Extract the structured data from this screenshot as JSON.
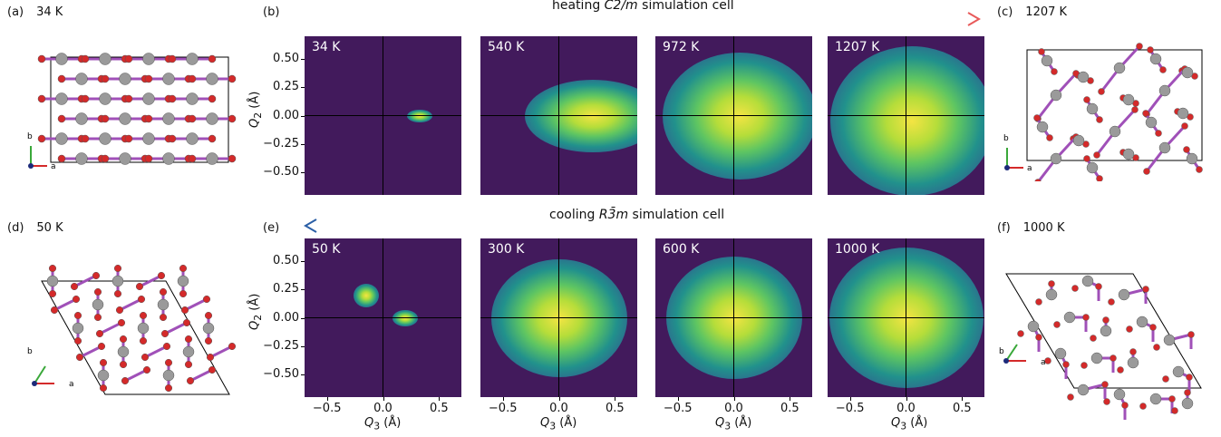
{
  "panels": {
    "a": {
      "label": "(a)",
      "temp": "34 K"
    },
    "b": {
      "label": "(b)"
    },
    "c": {
      "label": "(c)",
      "temp": "1207 K"
    },
    "d": {
      "label": "(d)",
      "temp": "50 K"
    },
    "e": {
      "label": "(e)"
    },
    "f": {
      "label": "(f)",
      "temp": "1000 K"
    }
  },
  "heating_title_pre": "heating ",
  "heating_title_cell": "C2/m",
  "heating_title_post": " simulation cell",
  "cooling_title_pre": "cooling ",
  "cooling_title_cell": "R3̄m",
  "cooling_title_post": " simulation cell",
  "axis_labels": {
    "a": "a",
    "b": "b"
  },
  "y_axis_label": "Q",
  "y_axis_sub": "2",
  "y_axis_unit": " (Å)",
  "x_axis_label": "Q",
  "x_axis_sub": "3",
  "x_axis_unit": " (Å)",
  "y_ticks": [
    "0.50",
    "0.25",
    "0.00",
    "−0.25",
    "−0.50"
  ],
  "x_ticks": [
    "−0.5",
    "0.0",
    "0.5"
  ],
  "heating_temps": [
    "34 K",
    "540 K",
    "972 K",
    "1207 K"
  ],
  "cooling_temps": [
    "50 K",
    "300 K",
    "600 K",
    "1000 K"
  ],
  "colors": {
    "background": "#421a5c",
    "heating_arrow_start": "#2b5fa6",
    "arrow_end": "#e85a5a",
    "atom_gray": "#9a9a9a",
    "atom_red": "#d42a2a",
    "bond": "#a050b8"
  },
  "chart_data": [
    {
      "type": "heatmap",
      "title": "34 K",
      "xlabel": "Q3 (Å)",
      "ylabel": "Q2 (Å)",
      "xlim": [
        -0.7,
        0.7
      ],
      "ylim": [
        -0.7,
        0.7
      ],
      "peaks": [
        {
          "x": 0.33,
          "y": 0.0
        }
      ]
    },
    {
      "type": "heatmap",
      "title": "540 K",
      "xlabel": "Q3 (Å)",
      "ylabel": "Q2 (Å)",
      "xlim": [
        -0.7,
        0.7
      ],
      "ylim": [
        -0.7,
        0.7
      ],
      "peaks": [
        {
          "x": 0.3,
          "y": 0.0
        }
      ]
    },
    {
      "type": "heatmap",
      "title": "972 K",
      "xlabel": "Q3 (Å)",
      "ylabel": "Q2 (Å)",
      "xlim": [
        -0.7,
        0.7
      ],
      "ylim": [
        -0.7,
        0.7
      ],
      "peaks": [
        {
          "x": 0.05,
          "y": 0.0
        }
      ]
    },
    {
      "type": "heatmap",
      "title": "1207 K",
      "xlabel": "Q3 (Å)",
      "ylabel": "Q2 (Å)",
      "xlim": [
        -0.7,
        0.7
      ],
      "ylim": [
        -0.7,
        0.7
      ],
      "peaks": [
        {
          "x": 0.05,
          "y": -0.05
        }
      ]
    },
    {
      "type": "heatmap",
      "title": "50 K",
      "xlabel": "Q3 (Å)",
      "ylabel": "Q2 (Å)",
      "xlim": [
        -0.7,
        0.7
      ],
      "ylim": [
        -0.7,
        0.7
      ],
      "peaks": [
        {
          "x": -0.15,
          "y": 0.2
        },
        {
          "x": 0.2,
          "y": 0.0
        }
      ]
    },
    {
      "type": "heatmap",
      "title": "300 K",
      "xlabel": "Q3 (Å)",
      "ylabel": "Q2 (Å)",
      "xlim": [
        -0.7,
        0.7
      ],
      "ylim": [
        -0.7,
        0.7
      ],
      "peaks": [
        {
          "x": 0.0,
          "y": 0.0
        }
      ]
    },
    {
      "type": "heatmap",
      "title": "600 K",
      "xlabel": "Q3 (Å)",
      "ylabel": "Q2 (Å)",
      "xlim": [
        -0.7,
        0.7
      ],
      "ylim": [
        -0.7,
        0.7
      ],
      "peaks": [
        {
          "x": 0.0,
          "y": 0.0
        }
      ]
    },
    {
      "type": "heatmap",
      "title": "1000 K",
      "xlabel": "Q3 (Å)",
      "ylabel": "Q2 (Å)",
      "xlim": [
        -0.7,
        0.7
      ],
      "ylim": [
        -0.7,
        0.7
      ],
      "peaks": [
        {
          "x": 0.0,
          "y": 0.0
        }
      ]
    }
  ]
}
